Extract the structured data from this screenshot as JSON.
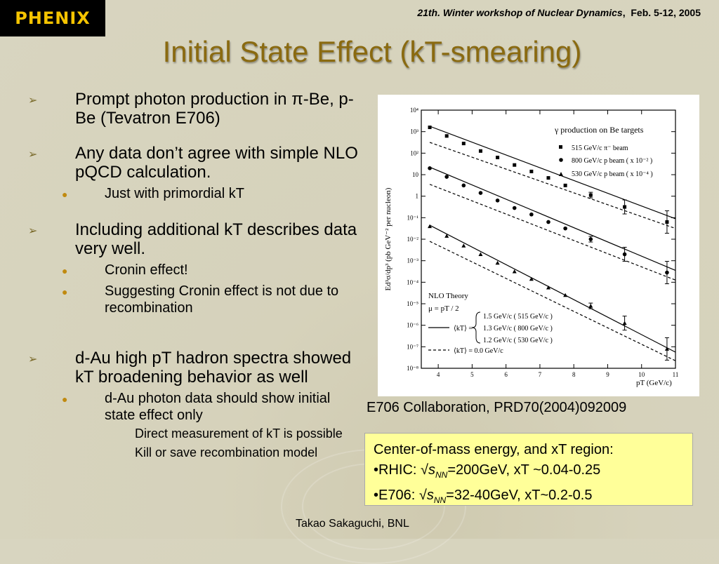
{
  "logo_text": "PHENIX",
  "header": {
    "workshop": "21th. Winter workshop of Nuclear Dynamics",
    "dates": "Feb. 5-12, 2005"
  },
  "title": "Initial State Effect (kT-smearing)",
  "bullets": {
    "b1": "Prompt photon production in π-Be, p-Be (Tevatron E706)",
    "b2": "Any data don’t agree with simple NLO pQCD calculation.",
    "b2_sub": "Just with primordial kT",
    "b3": "Including additional kT describes data very well.",
    "b3_sub1": "Cronin effect!",
    "b3_sub2": "Suggesting Cronin effect is not due to recombination",
    "b4": "d-Au high pT hadron spectra showed kT broadening behavior as well",
    "b4_sub": "d-Au photon data should show initial state effect only",
    "b4_sub_a": "Direct measurement of kT is possible",
    "b4_sub_b": "Kill or save recombination model"
  },
  "figure": {
    "title": "γ production on Be targets",
    "legend": [
      "515 GeV/c π⁻ beam",
      "800 GeV/c p beam ( x 10⁻² )",
      "530 GeV/c p beam ( x 10⁻⁴ )"
    ],
    "theory_label": "NLO Theory",
    "mu_label": "μ = pT / 2",
    "kt_values": [
      "1.5 GeV/c ( 515 GeV/c )",
      "1.3 GeV/c ( 800 GeV/c )",
      "1.2 GeV/c ( 530 GeV/c )"
    ],
    "kt_solid_label": "⟨kT⟩ =",
    "kt_zero_label": "⟨kT⟩ = 0.0 GeV/c",
    "ylabel": "Ed³σ/dp³ (pb GeV⁻² per nucleon)",
    "xlabel": "pT (GeV/c)",
    "xticks": [
      "4",
      "5",
      "6",
      "7",
      "8",
      "9",
      "10",
      "11"
    ],
    "yticks": [
      "10⁴",
      "10³",
      "10²",
      "10",
      "1",
      "10⁻¹",
      "10⁻²",
      "10⁻³",
      "10⁻⁴",
      "10⁻⁵",
      "10⁻⁶",
      "10⁻⁷",
      "10⁻⁸"
    ]
  },
  "caption": "E706 Collaboration, PRD70(2004)092009",
  "info_box": {
    "line1": "Center-of-mass energy, and xT region:",
    "rhic_prefix": "•RHIC: √",
    "rhic_suffix": "=200GeV, xT ~0.04-0.25",
    "e706_prefix": "•E706: √",
    "e706_suffix": "=32-40GeV, xT~0.2-0.5",
    "s_symbol": "s",
    "nn_sub": "NN"
  },
  "footer": "Takao Sakaguchi, BNL",
  "chart_data": {
    "type": "scatter",
    "xlabel": "pT (GeV/c)",
    "ylabel": "Ed3σ/dp3 (pb GeV-2 per nucleon)",
    "xlim": [
      3.5,
      11
    ],
    "ylim_log10": [
      -8,
      4
    ],
    "series": [
      {
        "name": "515 GeV/c π⁻ beam",
        "x": [
          3.75,
          4.25,
          4.75,
          5.25,
          5.75,
          6.25,
          6.75,
          7.25,
          7.75,
          8.5,
          9.5,
          10.75
        ],
        "log10_y": [
          3.2,
          2.8,
          2.45,
          2.1,
          1.8,
          1.45,
          1.15,
          0.85,
          0.5,
          0.05,
          -0.5,
          -1.2
        ]
      },
      {
        "name": "800 GeV/c p beam ( x 10⁻² )",
        "x": [
          3.75,
          4.25,
          4.75,
          5.25,
          5.75,
          6.25,
          6.75,
          7.25,
          7.75,
          8.5,
          9.5,
          10.75
        ],
        "log10_y": [
          1.3,
          0.9,
          0.5,
          0.15,
          -0.2,
          -0.55,
          -0.85,
          -1.2,
          -1.5,
          -2.0,
          -2.7,
          -3.55
        ]
      },
      {
        "name": "530 GeV/c p beam ( x 10⁻⁴ )",
        "x": [
          3.75,
          4.25,
          4.75,
          5.25,
          5.75,
          6.25,
          6.75,
          7.25,
          7.75,
          8.5,
          9.5,
          10.75
        ],
        "log10_y": [
          -1.4,
          -1.85,
          -2.3,
          -2.7,
          -3.1,
          -3.5,
          -3.85,
          -4.25,
          -4.6,
          -5.1,
          -5.9,
          -7.1
        ]
      }
    ],
    "curves_solid_log10_y_at_x": {
      "x": [
        3.75,
        11
      ],
      "s1": [
        3.25,
        -1.05
      ],
      "s2": [
        1.35,
        -3.45
      ],
      "s3": [
        -1.35,
        -7.25
      ]
    },
    "curves_dashed_log10_y_at_x": {
      "x": [
        3.75,
        11
      ],
      "s1": [
        2.5,
        -1.5
      ],
      "s2": [
        0.55,
        -3.9
      ],
      "s3": [
        -2.1,
        -7.65
      ]
    }
  }
}
